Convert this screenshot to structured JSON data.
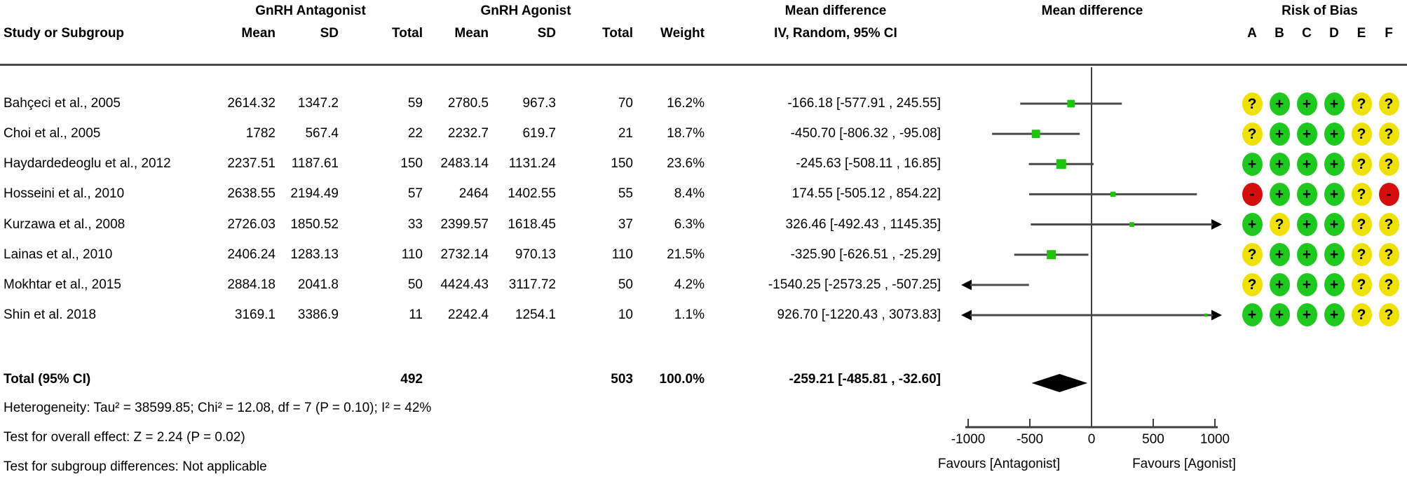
{
  "title_row": {
    "group1": "GnRH Antagonist",
    "group2": "GnRH Agonist",
    "md_stats": "Mean difference",
    "md_plot": "Mean difference",
    "rob_title": "Risk of Bias"
  },
  "columns": {
    "study": "Study or Subgroup",
    "mean": "Mean",
    "sd": "SD",
    "total": "Total",
    "weight": "Weight",
    "method": "IV, Random, 95% CI",
    "rob_letters": [
      "A",
      "B",
      "C",
      "D",
      "E",
      "F"
    ]
  },
  "rows": [
    {
      "study": "Bahçeci et al., 2005",
      "mean1": "2614.32",
      "sd1": "1347.2",
      "total1": "59",
      "mean2": "2780.5",
      "sd2": "967.3",
      "total2": "70",
      "weight": "16.2%",
      "ci": "-166.18 [-577.91 , 245.55]",
      "rob": [
        "?",
        "+",
        "+",
        "+",
        "?",
        "?"
      ]
    },
    {
      "study": "Choi et al., 2005",
      "mean1": "1782",
      "sd1": "567.4",
      "total1": "22",
      "mean2": "2232.7",
      "sd2": "619.7",
      "total2": "21",
      "weight": "18.7%",
      "ci": "-450.70 [-806.32 , -95.08]",
      "rob": [
        "?",
        "+",
        "+",
        "+",
        "?",
        "?"
      ]
    },
    {
      "study": "Haydardedeoglu et al., 2012",
      "mean1": "2237.51",
      "sd1": "1187.61",
      "total1": "150",
      "mean2": "2483.14",
      "sd2": "1131.24",
      "total2": "150",
      "weight": "23.6%",
      "ci": "-245.63 [-508.11 , 16.85]",
      "rob": [
        "+",
        "+",
        "+",
        "+",
        "?",
        "?"
      ]
    },
    {
      "study": "Hosseini et al., 2010",
      "mean1": "2638.55",
      "sd1": "2194.49",
      "total1": "57",
      "mean2": "2464",
      "sd2": "1402.55",
      "total2": "55",
      "weight": "8.4%",
      "ci": "174.55 [-505.12 , 854.22]",
      "rob": [
        "-",
        "+",
        "+",
        "+",
        "?",
        "-"
      ]
    },
    {
      "study": "Kurzawa et al., 2008",
      "mean1": "2726.03",
      "sd1": "1850.52",
      "total1": "33",
      "mean2": "2399.57",
      "sd2": "1618.45",
      "total2": "37",
      "weight": "6.3%",
      "ci": "326.46 [-492.43 , 1145.35]",
      "rob": [
        "+",
        "?",
        "+",
        "+",
        "?",
        "?"
      ]
    },
    {
      "study": "Lainas et al., 2010",
      "mean1": "2406.24",
      "sd1": "1283.13",
      "total1": "110",
      "mean2": "2732.14",
      "sd2": "970.13",
      "total2": "110",
      "weight": "21.5%",
      "ci": "-325.90 [-626.51 , -25.29]",
      "rob": [
        "?",
        "+",
        "+",
        "+",
        "?",
        "?"
      ]
    },
    {
      "study": "Mokhtar et al., 2015",
      "mean1": "2884.18",
      "sd1": "2041.8",
      "total1": "50",
      "mean2": "4424.43",
      "sd2": "3117.72",
      "total2": "50",
      "weight": "4.2%",
      "ci": "-1540.25 [-2573.25 , -507.25]",
      "rob": [
        "?",
        "+",
        "+",
        "+",
        "?",
        "?"
      ]
    },
    {
      "study": "Shin et al. 2018",
      "mean1": "3169.1",
      "sd1": "3386.9",
      "total1": "11",
      "mean2": "2242.4",
      "sd2": "1254.1",
      "total2": "10",
      "weight": "1.1%",
      "ci": "926.70 [-1220.43 , 3073.83]",
      "rob": [
        "+",
        "+",
        "+",
        "+",
        "?",
        "?"
      ]
    }
  ],
  "total": {
    "label": "Total (95% CI)",
    "total1": "492",
    "total2": "503",
    "weight": "100.0%",
    "ci": "-259.21 [-485.81 , -32.60]"
  },
  "footer": {
    "heterogeneity": "Heterogeneity: Tau² = 38599.85; Chi² = 12.08, df = 7 (P = 0.10); I² = 42%",
    "overall_effect": "Test for overall effect: Z = 2.24 (P = 0.02)",
    "subgroup": "Test for subgroup differences: Not applicable"
  },
  "colors": {
    "square": "#1fc30a",
    "diamond": "#000000",
    "ci_line": "#4a4a4a",
    "axis": "#3f3f3f",
    "rob_yes": "#1fc81f",
    "rob_no": "#d40d0d",
    "rob_unclear": "#efe104"
  },
  "chart_data": {
    "type": "scatter",
    "variant": "forest_plot",
    "effect_measure": "Mean difference, IV, Random, 95% CI",
    "studies": [
      "Bahçeci et al., 2005",
      "Choi et al., 2005",
      "Haydardedeoglu et al., 2012",
      "Hosseini et al., 2010",
      "Kurzawa et al., 2008",
      "Lainas et al., 2010",
      "Mokhtar et al., 2015",
      "Shin et al. 2018"
    ],
    "effects": [
      -166.18,
      -450.7,
      -245.63,
      174.55,
      326.46,
      -325.9,
      -1540.25,
      926.7
    ],
    "ci_low": [
      -577.91,
      -806.32,
      -508.11,
      -505.12,
      -492.43,
      -626.51,
      -2573.25,
      -1220.43
    ],
    "ci_high": [
      245.55,
      -95.08,
      16.85,
      854.22,
      1145.35,
      -25.29,
      -507.25,
      3073.83
    ],
    "weights_pct": [
      16.2,
      18.7,
      23.6,
      8.4,
      6.3,
      21.5,
      4.2,
      1.1
    ],
    "total": {
      "effect": -259.21,
      "ci_low": -485.81,
      "ci_high": -32.6
    },
    "xlim": [
      -1000,
      1000
    ],
    "xticks": [
      -1000,
      -500,
      0,
      500,
      1000
    ],
    "xtick_labels": [
      "-1000",
      "-500",
      "0",
      "500",
      "1000"
    ],
    "xlabel_left": "Favours [Antagonist]",
    "xlabel_right": "Favours [Agonist]"
  }
}
